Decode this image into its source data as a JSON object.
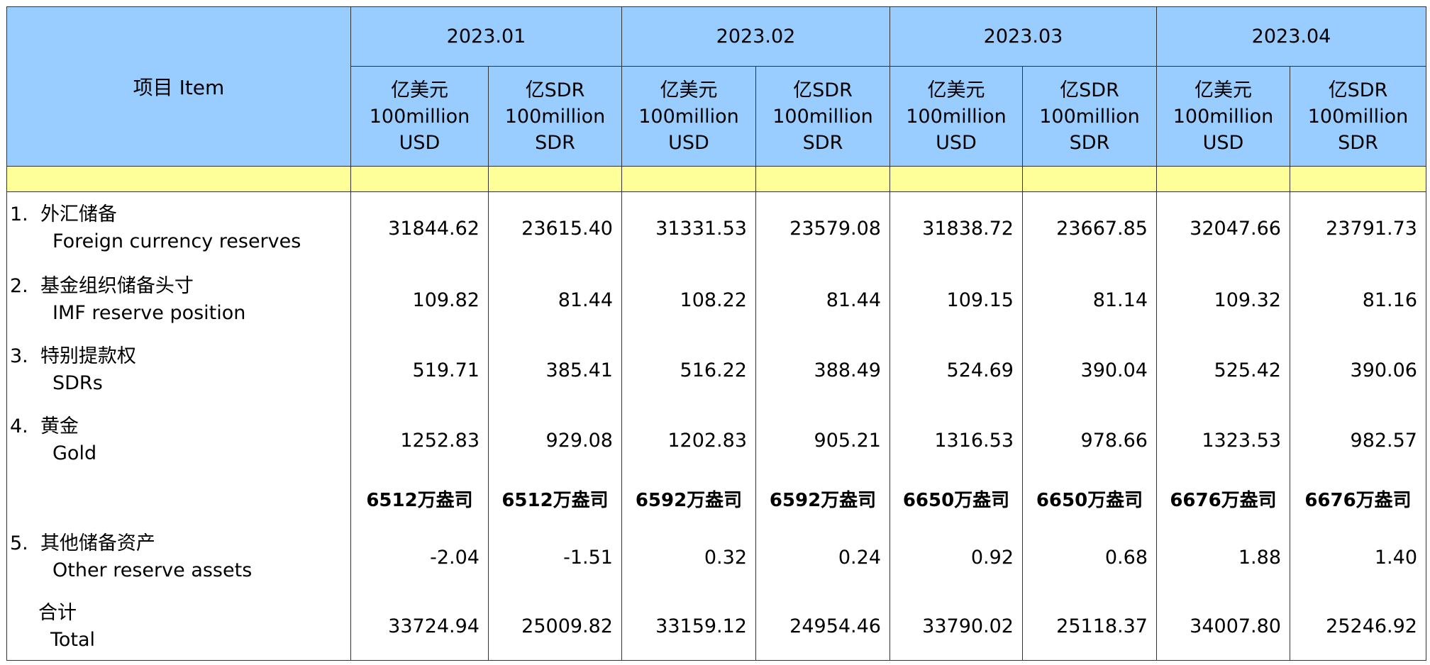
{
  "header": {
    "item": "项目  Item",
    "periods": [
      "2023.01",
      "2023.02",
      "2023.03",
      "2023.04"
    ],
    "units": [
      [
        "亿美元",
        "100million",
        "USD"
      ],
      [
        "亿SDR",
        "100million",
        "SDR"
      ],
      [
        "亿美元",
        "100million",
        "USD"
      ],
      [
        "亿SDR",
        "100million",
        "SDR"
      ],
      [
        "亿美元",
        "100million",
        "USD"
      ],
      [
        "亿SDR",
        "100million",
        "SDR"
      ],
      [
        "亿美元",
        "100million",
        "USD"
      ],
      [
        "亿SDR",
        "100million",
        "SDR"
      ]
    ]
  },
  "rows": [
    {
      "num": "1.",
      "zh": "外汇储备",
      "en": "Foreign currency reserves",
      "values": [
        "31844.62",
        "23615.40",
        "31331.53",
        "23579.08",
        "31838.72",
        "23667.85",
        "32047.66",
        "23791.73"
      ]
    },
    {
      "num": "2.",
      "zh": "基金组织储备头寸",
      "en": "IMF reserve position",
      "values": [
        "109.82",
        "81.44",
        "108.22",
        "81.44",
        "109.15",
        "81.14",
        "109.32",
        "81.16"
      ]
    },
    {
      "num": "3.",
      "zh": "特别提款权",
      "en": "SDRs",
      "values": [
        "519.71",
        "385.41",
        "516.22",
        "388.49",
        "524.69",
        "390.04",
        "525.42",
        "390.06"
      ]
    },
    {
      "num": "4.",
      "zh": "黄金",
      "en": "Gold",
      "values": [
        "1252.83",
        "929.08",
        "1202.83",
        "905.21",
        "1316.53",
        "978.66",
        "1323.53",
        "982.57"
      ]
    },
    {
      "values": [
        "6512万盎司",
        "6512万盎司",
        "6592万盎司",
        "6592万盎司",
        "6650万盎司",
        "6650万盎司",
        "6676万盎司",
        "6676万盎司"
      ]
    },
    {
      "num": "5.",
      "zh": "其他储备资产",
      "en": "Other reserve assets",
      "values": [
        "-2.04",
        "-1.51",
        "0.32",
        "0.24",
        "0.92",
        "0.68",
        "1.88",
        "1.40"
      ]
    },
    {
      "zh": "合计",
      "en": "Total",
      "values": [
        "33724.94",
        "25009.82",
        "33159.12",
        "24954.46",
        "33790.02",
        "25118.37",
        "34007.80",
        "25246.92"
      ]
    }
  ]
}
